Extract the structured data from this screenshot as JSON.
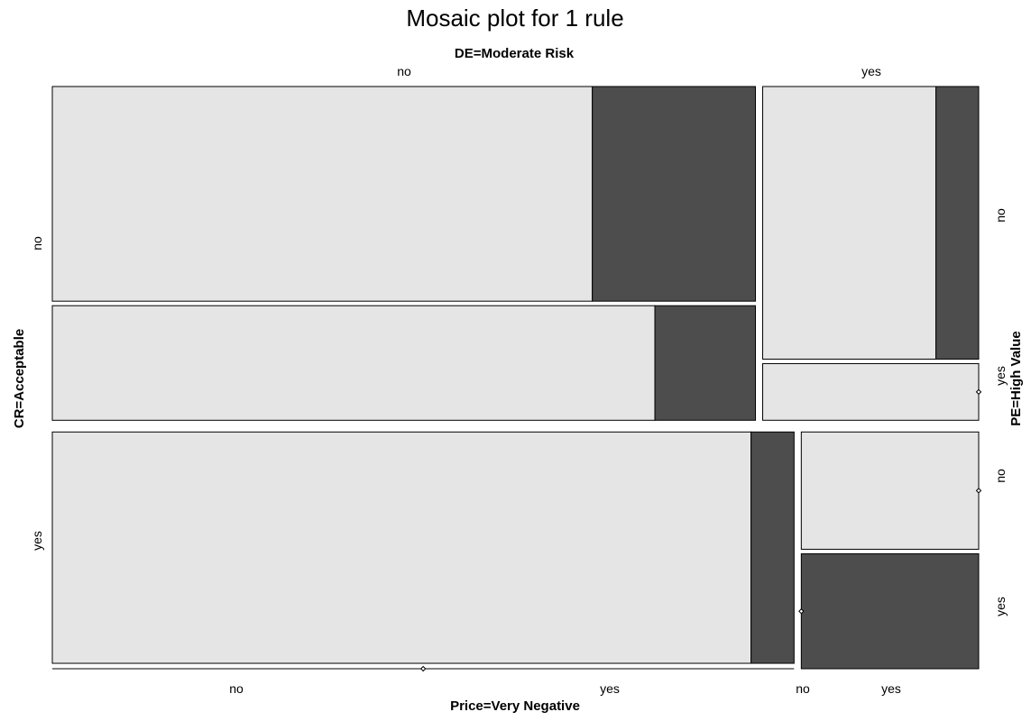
{
  "chart_data": {
    "type": "mosaic",
    "title": "Mosaic plot for 1 rule",
    "variables": {
      "top": "DE=Moderate Risk",
      "left": "CR=Acceptable",
      "right": "PE=High Value",
      "bottom": "Price=Very Negative"
    },
    "levels": {
      "top": [
        "no",
        "yes"
      ],
      "left": [
        "no",
        "yes"
      ],
      "right_cr_no": [
        "no",
        "yes"
      ],
      "right_cr_yes": [
        "no",
        "yes"
      ],
      "bottom_de_no": [
        "no",
        "yes"
      ],
      "bottom_de_yes": [
        "no",
        "yes"
      ]
    },
    "proportions": {
      "cr_no_share": 0.585,
      "cr_yes_share": 0.415,
      "cr_no": {
        "de_no_share": 0.765,
        "de_no_pe_no_share": 0.652,
        "de_no_pe_no_price_yes_share": 0.232,
        "de_no_pe_yes_price_yes_share": 0.143,
        "de_yes_pe_no_share": 0.828,
        "de_yes_pe_no_price_yes_share": 0.198,
        "de_yes_pe_yes_price_yes_share": 0.0
      },
      "cr_yes": {
        "de_no_share": 0.807,
        "de_no_pe_no_share": 1.0,
        "de_no_pe_no_price_yes_share": 0.058,
        "de_no_pe_yes_share": 0.0,
        "de_yes_pe_no_share": 0.505,
        "de_yes_pe_no_price_yes_share": 0.0,
        "de_yes_pe_yes_share": 0.495,
        "de_yes_pe_yes_price_yes_share": 1.0
      }
    },
    "colors": {
      "price_no": "#e5e5e5",
      "price_yes": "#4d4d4d",
      "border": "#000000"
    }
  }
}
